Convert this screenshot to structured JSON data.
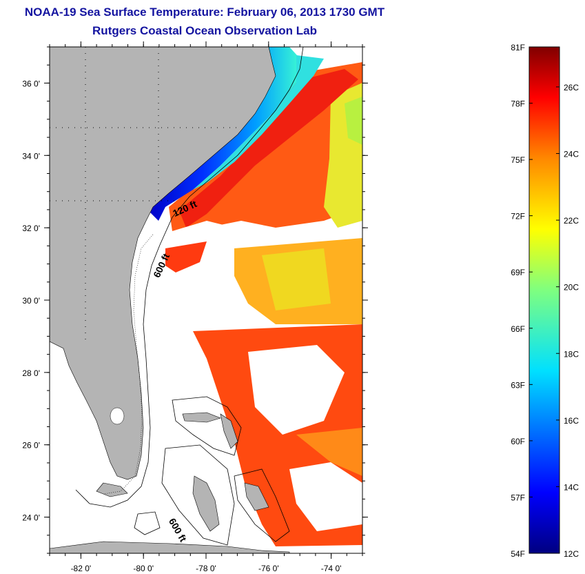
{
  "header": {
    "title": "NOAA-19 Sea Surface Temperature:  February 06, 2013 1730 GMT",
    "subtitle": "Rutgers Coastal Ocean Observation Lab"
  },
  "map": {
    "lat_ticks": [
      {
        "value": 36,
        "label": "36 0'"
      },
      {
        "value": 34,
        "label": "34 0'"
      },
      {
        "value": 32,
        "label": "32 0'"
      },
      {
        "value": 30,
        "label": "30 0'"
      },
      {
        "value": 28,
        "label": "28 0'"
      },
      {
        "value": 26,
        "label": "26 0'"
      },
      {
        "value": 24,
        "label": "24 0'"
      }
    ],
    "lon_ticks": [
      {
        "value": -82,
        "label": "-82 0'"
      },
      {
        "value": -80,
        "label": "-80 0'"
      },
      {
        "value": -78,
        "label": "-78 0'"
      },
      {
        "value": -76,
        "label": "-76 0'"
      },
      {
        "value": -74,
        "label": "-74 0'"
      }
    ],
    "lat_range": [
      23,
      37
    ],
    "lon_range": [
      -83,
      -73
    ],
    "contour_labels": [
      {
        "text": "120 ft",
        "lon": -79.0,
        "lat": 32.3,
        "rotate": -25
      },
      {
        "text": "600 ft",
        "lon": -79.5,
        "lat": 30.6,
        "rotate": -65
      },
      {
        "text": "600 ft",
        "lon": -79.2,
        "lat": 23.9,
        "rotate": 60
      }
    ],
    "colors": {
      "land": "#b4b4b4",
      "ocean_missing": "#ffffff"
    }
  },
  "colorbar": {
    "fahrenheit": [
      "81F",
      "78F",
      "75F",
      "72F",
      "69F",
      "66F",
      "63F",
      "60F",
      "57F",
      "54F"
    ],
    "celsius": [
      "26C",
      "24C",
      "22C",
      "20C",
      "18C",
      "16C",
      "14C",
      "12C"
    ],
    "min_c": 12,
    "max_c": 27.2
  }
}
